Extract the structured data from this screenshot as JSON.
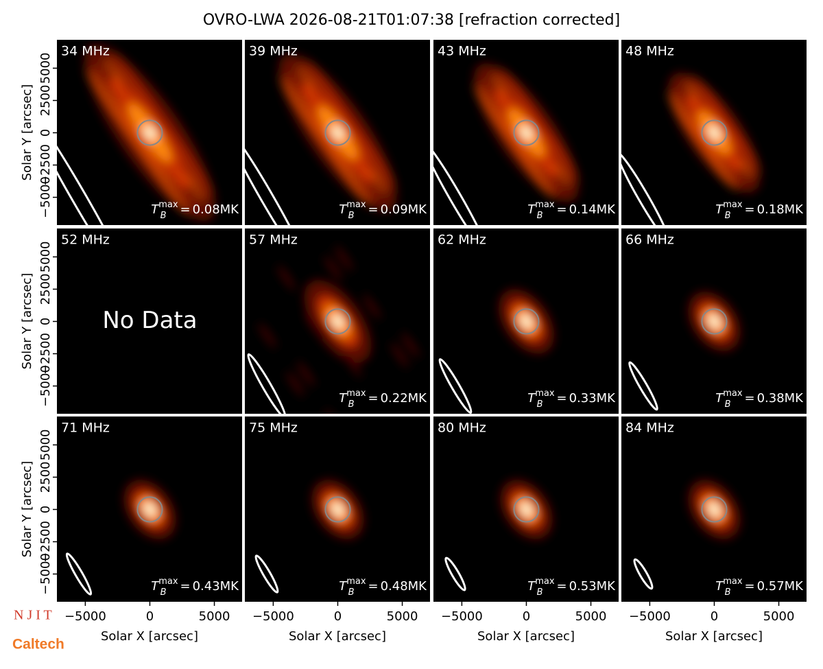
{
  "title": "OVRO-LWA 2026-08-21T01:07:38 [refraction corrected]",
  "logos": [
    "N J I T",
    "Caltech"
  ],
  "chart_data": [
    {
      "type": "image",
      "title": "34 MHz",
      "annotation": {
        "symbol": "T",
        "subscript": "B",
        "superscript": "max",
        "equals": "=",
        "value": 0.08,
        "unit": "MK"
      },
      "xlim": [
        -7200,
        7150
      ],
      "ylim": [
        -7150,
        7200
      ],
      "ylabel": "Solar Y [arcsec]",
      "yticks": [
        {
          "value": -5000,
          "label": "−5000"
        },
        {
          "value": -2500,
          "label": "−2500"
        },
        0,
        2500,
        5000
      ]
    },
    {
      "type": "image",
      "title": "39 MHz",
      "annotation": {
        "symbol": "T",
        "subscript": "B",
        "superscript": "max",
        "equals": "=",
        "value": 0.09,
        "unit": "MK"
      },
      "xlim": [
        -7200,
        7150
      ],
      "ylim": [
        -7150,
        7200
      ]
    },
    {
      "type": "image",
      "title": "43 MHz",
      "annotation": {
        "symbol": "T",
        "subscript": "B",
        "superscript": "max",
        "equals": "=",
        "value": 0.14,
        "unit": "MK"
      },
      "xlim": [
        -7200,
        7150
      ],
      "ylim": [
        -7150,
        7200
      ]
    },
    {
      "type": "image",
      "title": "48 MHz",
      "annotation": {
        "symbol": "T",
        "subscript": "B",
        "superscript": "max",
        "equals": "=",
        "value": 0.18,
        "unit": "MK"
      },
      "xlim": [
        -7200,
        7150
      ],
      "ylim": [
        -7150,
        7200
      ]
    },
    {
      "type": "image",
      "title": "52 MHz",
      "note": "No Data",
      "xlim": [
        -7200,
        7150
      ],
      "ylim": [
        -7150,
        7200
      ],
      "ylabel": "Solar Y [arcsec]",
      "yticks": [
        {
          "value": -5000,
          "label": "−5000"
        },
        {
          "value": -2500,
          "label": "−2500"
        },
        0,
        2500,
        5000
      ]
    },
    {
      "type": "image",
      "title": "57 MHz",
      "annotation": {
        "symbol": "T",
        "subscript": "B",
        "superscript": "max",
        "equals": "=",
        "value": 0.22,
        "unit": "MK"
      },
      "xlim": [
        -7200,
        7150
      ],
      "ylim": [
        -7150,
        7200
      ]
    },
    {
      "type": "image",
      "title": "62 MHz",
      "annotation": {
        "symbol": "T",
        "subscript": "B",
        "superscript": "max",
        "equals": "=",
        "value": 0.33,
        "unit": "MK"
      },
      "xlim": [
        -7200,
        7150
      ],
      "ylim": [
        -7150,
        7200
      ]
    },
    {
      "type": "image",
      "title": "66 MHz",
      "annotation": {
        "symbol": "T",
        "subscript": "B",
        "superscript": "max",
        "equals": "=",
        "value": 0.38,
        "unit": "MK"
      },
      "xlim": [
        -7200,
        7150
      ],
      "ylim": [
        -7150,
        7200
      ]
    },
    {
      "type": "image",
      "title": "71 MHz",
      "annotation": {
        "symbol": "T",
        "subscript": "B",
        "superscript": "max",
        "equals": "=",
        "value": 0.43,
        "unit": "MK"
      },
      "xlim": [
        -7200,
        7150
      ],
      "ylim": [
        -7150,
        7200
      ],
      "ylabel": "Solar Y [arcsec]",
      "yticks": [
        {
          "value": -5000,
          "label": "−5000"
        },
        {
          "value": -2500,
          "label": "−2500"
        },
        0,
        2500,
        5000
      ],
      "xlabel": "Solar X [arcsec]",
      "xticks": [
        {
          "value": -5000,
          "label": "−5000"
        },
        0,
        5000
      ]
    },
    {
      "type": "image",
      "title": "75 MHz",
      "annotation": {
        "symbol": "T",
        "subscript": "B",
        "superscript": "max",
        "equals": "=",
        "value": 0.48,
        "unit": "MK"
      },
      "xlim": [
        -7200,
        7150
      ],
      "ylim": [
        -7150,
        7200
      ],
      "xlabel": "Solar X [arcsec]",
      "xticks": [
        {
          "value": -5000,
          "label": "−5000"
        },
        0,
        5000
      ]
    },
    {
      "type": "image",
      "title": "80 MHz",
      "annotation": {
        "symbol": "T",
        "subscript": "B",
        "superscript": "max",
        "equals": "=",
        "value": 0.53,
        "unit": "MK"
      },
      "xlim": [
        -7200,
        7150
      ],
      "ylim": [
        -7150,
        7200
      ],
      "xlabel": "Solar X [arcsec]",
      "xticks": [
        {
          "value": -5000,
          "label": "−5000"
        },
        0,
        5000
      ]
    },
    {
      "type": "image",
      "title": "84 MHz",
      "annotation": {
        "symbol": "T",
        "subscript": "B",
        "superscript": "max",
        "equals": "=",
        "value": 0.57,
        "unit": "MK"
      },
      "xlim": [
        -7200,
        7150
      ],
      "ylim": [
        -7150,
        7200
      ],
      "xlabel": "Solar X [arcsec]",
      "xticks": [
        {
          "value": -5000,
          "label": "−5000"
        },
        0,
        5000
      ]
    }
  ]
}
